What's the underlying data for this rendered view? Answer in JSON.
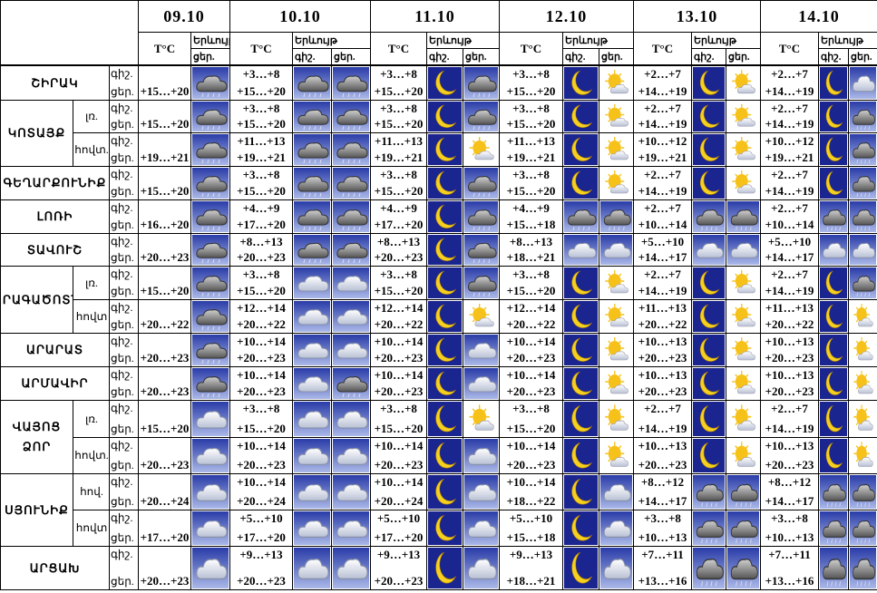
{
  "header": {
    "dates": [
      "09.10",
      "10.10",
      "11.10",
      "12.10",
      "13.10",
      "14.10"
    ],
    "temp_label": "T°C",
    "phenomenon": "Երևույթ",
    "night": "գիշ.",
    "day": "ցեր."
  },
  "regions": [
    {
      "name": "ՇԻՐԱԿ",
      "rows": [
        {
          "temps": [
            [
              "+15…+20"
            ],
            [
              "+3…+8",
              "+15…+20"
            ],
            [
              "+3…+8",
              "+15…+20"
            ],
            [
              "+3…+8",
              "+15…+20"
            ],
            [
              "+2…+7",
              "+14…+19"
            ],
            [
              "+2…+7",
              "+14…+19"
            ]
          ]
        }
      ]
    },
    {
      "name": "ԿՈՏԱՅՔ",
      "rows": [
        {
          "sub": "լռ.",
          "temps": [
            [
              "+15…+20"
            ],
            [
              "+3…+8",
              "+15…+20"
            ],
            [
              "+3…+8",
              "+15…+20"
            ],
            [
              "+3…+8",
              "+15…+20"
            ],
            [
              "+2…+7",
              "+14…+19"
            ],
            [
              "+2…+7",
              "+14…+19"
            ]
          ]
        },
        {
          "sub": "հովտ.",
          "temps": [
            [
              "+19…+21"
            ],
            [
              "+11…+13",
              "+19…+21"
            ],
            [
              "+11…+13",
              "+19…+21"
            ],
            [
              "+11…+13",
              "+19…+21"
            ],
            [
              "+10…+12",
              "+19…+21"
            ],
            [
              "+10…+12",
              "+19…+21"
            ]
          ]
        }
      ]
    },
    {
      "name": "ԳԵՂԱՐՔՈՒՆԻՔ",
      "rows": [
        {
          "temps": [
            [
              "+15…+20"
            ],
            [
              "+3…+8",
              "+15…+20"
            ],
            [
              "+3…+8",
              "+15…+20"
            ],
            [
              "+3…+8",
              "+15…+20"
            ],
            [
              "+2…+7",
              "+14…+19"
            ],
            [
              "+2…+7",
              "+14…+19"
            ]
          ]
        }
      ]
    },
    {
      "name": "ԼՈՌԻ",
      "rows": [
        {
          "temps": [
            [
              "+16…+20"
            ],
            [
              "+4…+9",
              "+17…+20"
            ],
            [
              "+4…+9",
              "+17…+20"
            ],
            [
              "+4…+9",
              "+15…+18"
            ],
            [
              "+2…+7",
              "+10…+14"
            ],
            [
              "+2…+7",
              "+10…+14"
            ]
          ]
        }
      ]
    },
    {
      "name": "ՏԱՎՈՒՇ",
      "rows": [
        {
          "temps": [
            [
              "+20…+23"
            ],
            [
              "+8…+13",
              "+20…+23"
            ],
            [
              "+8…+13",
              "+20…+23"
            ],
            [
              "+8…+13",
              "+18…+21"
            ],
            [
              "+5…+10",
              "+14…+17"
            ],
            [
              "+5…+10",
              "+14…+17"
            ]
          ]
        }
      ]
    },
    {
      "name": "ԱՐԱԳԱԾՈՏՆ",
      "rows": [
        {
          "sub": "լռ.",
          "temps": [
            [
              "+15…+20"
            ],
            [
              "+3…+8",
              "+15…+20"
            ],
            [
              "+3…+8",
              "+15…+20"
            ],
            [
              "+3…+8",
              "+15…+20"
            ],
            [
              "+2…+7",
              "+14…+19"
            ],
            [
              "+2…+7",
              "+14…+19"
            ]
          ]
        },
        {
          "sub": "հովտ",
          "temps": [
            [
              "+20…+22"
            ],
            [
              "+12…+14",
              "+20…+22"
            ],
            [
              "+12…+14",
              "+20…+22"
            ],
            [
              "+12…+14",
              "+20…+22"
            ],
            [
              "+11…+13",
              "+20…+22"
            ],
            [
              "+11…+13",
              "+20…+22"
            ]
          ]
        }
      ]
    },
    {
      "name": "ԱՐԱՐԱՏ",
      "rows": [
        {
          "temps": [
            [
              "+20…+23"
            ],
            [
              "+10…+14",
              "+20…+23"
            ],
            [
              "+10…+14",
              "+20…+23"
            ],
            [
              "+10…+14",
              "+20…+23"
            ],
            [
              "+10…+13",
              "+20…+23"
            ],
            [
              "+10…+13",
              "+20…+23"
            ]
          ]
        }
      ]
    },
    {
      "name": "ԱՐՄԱՎԻՐ",
      "rows": [
        {
          "temps": [
            [
              "+20…+23"
            ],
            [
              "+10…+14",
              "+20…+23"
            ],
            [
              "+10…+14",
              "+20…+23"
            ],
            [
              "+10…+14",
              "+20…+23"
            ],
            [
              "+10…+13",
              "+20…+23"
            ],
            [
              "+10…+13",
              "+20…+23"
            ]
          ]
        }
      ]
    },
    {
      "name": "ՎԱՅՈՑ ՁՈՐ",
      "rows": [
        {
          "sub": "լռ.",
          "temps": [
            [
              "+15…+20"
            ],
            [
              "+3…+8",
              "+15…+20"
            ],
            [
              "+3…+8",
              "+15…+20"
            ],
            [
              "+3…+8",
              "+15…+20"
            ],
            [
              "+2…+7",
              "+14…+19"
            ],
            [
              "+2…+7",
              "+14…+19"
            ]
          ]
        },
        {
          "sub": "հովտ.",
          "temps": [
            [
              "+20…+23"
            ],
            [
              "+10…+14",
              "+20…+23"
            ],
            [
              "+10…+14",
              "+20…+23"
            ],
            [
              "+10…+14",
              "+20…+23"
            ],
            [
              "+10…+13",
              "+20…+23"
            ],
            [
              "+10…+13",
              "+20…+23"
            ]
          ]
        }
      ]
    },
    {
      "name": "ՍՅՈՒՆԻՔ",
      "rows": [
        {
          "sub": "հով.",
          "temps": [
            [
              "+20…+24"
            ],
            [
              "+10…+14",
              "+20…+24"
            ],
            [
              "+10…+14",
              "+20…+24"
            ],
            [
              "+10…+14",
              "+18…+22"
            ],
            [
              "+8…+12",
              "+14…+17"
            ],
            [
              "+8…+12",
              "+14…+17"
            ]
          ]
        },
        {
          "sub": "հովտ",
          "temps": [
            [
              "+17…+20"
            ],
            [
              "+5…+10",
              "+17…+20"
            ],
            [
              "+5…+10",
              "+17…+20"
            ],
            [
              "+5…+10",
              "+15…+18"
            ],
            [
              "+3…+8",
              "+10…+13"
            ],
            [
              "+3…+8",
              "+10…+13"
            ]
          ]
        }
      ]
    },
    {
      "name": "ԱՐՑԱԽ",
      "rows": [
        {
          "temps": [
            [
              "+20…+23"
            ],
            [
              "+9…+13",
              "+20…+23"
            ],
            [
              "+9…+13",
              "+20…+23"
            ],
            [
              "+9…+13",
              "+18…+21"
            ],
            [
              "+7…+11",
              "+13…+16"
            ],
            [
              "+7…+11",
              "+13…+16"
            ]
          ]
        }
      ]
    }
  ]
}
